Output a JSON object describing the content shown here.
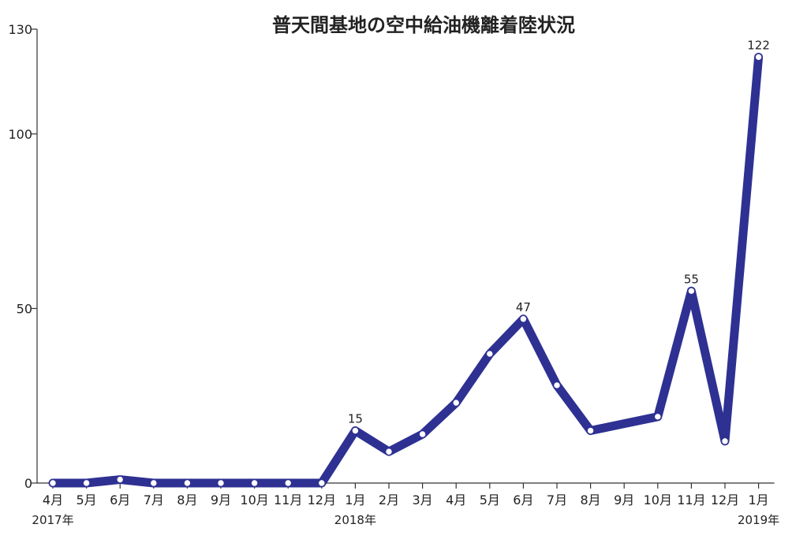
{
  "chart_data": {
    "type": "line",
    "title": "普天間基地の空中給油機離着陸状況",
    "xlabel": "",
    "ylabel": "",
    "categories": [
      "4月",
      "5月",
      "6月",
      "7月",
      "8月",
      "9月",
      "10月",
      "11月",
      "12月",
      "1月",
      "2月",
      "3月",
      "4月",
      "5月",
      "6月",
      "7月",
      "8月",
      "9月",
      "10月",
      "11月",
      "12月",
      "1月"
    ],
    "year_labels": [
      {
        "index": 0,
        "label": "2017年"
      },
      {
        "index": 9,
        "label": "2018年"
      },
      {
        "index": 21,
        "label": "2019年"
      }
    ],
    "series": [
      {
        "values": [
          0,
          0,
          1,
          0,
          0,
          0,
          0,
          0,
          0,
          15,
          9,
          14,
          23,
          37,
          47,
          28,
          15,
          17,
          19,
          55,
          12,
          122
        ],
        "color": "#2e3192"
      }
    ],
    "point_markers": [
      0,
      1,
      2,
      3,
      4,
      5,
      6,
      7,
      8,
      9,
      10,
      11,
      12,
      13,
      14,
      15,
      16,
      18,
      19,
      20,
      21
    ],
    "data_labels": [
      {
        "index": 9,
        "text": "15"
      },
      {
        "index": 14,
        "text": "47"
      },
      {
        "index": 19,
        "text": "55"
      },
      {
        "index": 21,
        "text": "122"
      }
    ],
    "yticks": [
      0,
      50,
      100,
      130
    ],
    "ylim": [
      0,
      130
    ],
    "grid": false,
    "legend": "none"
  }
}
